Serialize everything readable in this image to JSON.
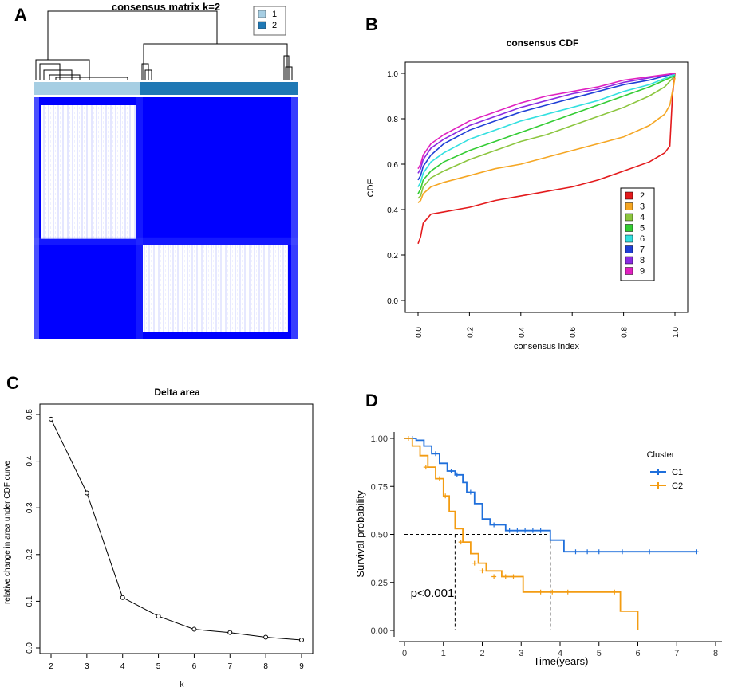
{
  "panel_letters": {
    "a": "A",
    "b": "B",
    "c": "C",
    "d": "D"
  },
  "chart_data": [
    {
      "panel": "A",
      "type": "heatmap",
      "title": "consensus matrix k=2",
      "legend": [
        {
          "label": "1",
          "color": "#a6cee3"
        },
        {
          "label": "2",
          "color": "#1f78b4"
        }
      ],
      "clusters": [
        {
          "name": "1",
          "fraction": 0.4,
          "color": "#a6cee3"
        },
        {
          "name": "2",
          "fraction": 0.6,
          "color": "#1f78b4"
        }
      ],
      "matrix_color": "#0000ff"
    },
    {
      "panel": "B",
      "type": "line",
      "title": "consensus CDF",
      "xlabel": "consensus index",
      "ylabel": "CDF",
      "xlim": [
        0,
        1
      ],
      "ylim": [
        0,
        1
      ],
      "xticks": [
        0.0,
        0.2,
        0.4,
        0.6,
        0.8,
        1.0
      ],
      "yticks": [
        0.0,
        0.2,
        0.4,
        0.6,
        0.8,
        1.0
      ],
      "xtick_labels": [
        "0.0",
        "0.2",
        "0.4",
        "0.6",
        "0.8",
        "1.0"
      ],
      "ytick_labels": [
        "0.0",
        "0.2",
        "0.4",
        "0.6",
        "0.8",
        "1.0"
      ],
      "legend_position": "bottom-right",
      "series": [
        {
          "name": "2",
          "color": "#e31a1c",
          "x": [
            0,
            0.01,
            0.02,
            0.05,
            0.1,
            0.2,
            0.3,
            0.4,
            0.5,
            0.6,
            0.7,
            0.8,
            0.9,
            0.96,
            0.98,
            0.99,
            1.0
          ],
          "y": [
            0.25,
            0.28,
            0.34,
            0.38,
            0.39,
            0.41,
            0.44,
            0.46,
            0.48,
            0.5,
            0.53,
            0.57,
            0.61,
            0.65,
            0.68,
            0.9,
            1.0
          ]
        },
        {
          "name": "3",
          "color": "#f5a623",
          "x": [
            0,
            0.01,
            0.02,
            0.05,
            0.1,
            0.2,
            0.3,
            0.4,
            0.5,
            0.6,
            0.7,
            0.8,
            0.9,
            0.96,
            0.98,
            1.0
          ],
          "y": [
            0.43,
            0.44,
            0.47,
            0.5,
            0.52,
            0.55,
            0.58,
            0.6,
            0.63,
            0.66,
            0.69,
            0.72,
            0.77,
            0.82,
            0.86,
            0.98
          ]
        },
        {
          "name": "4",
          "color": "#8cc63f",
          "x": [
            0,
            0.01,
            0.02,
            0.05,
            0.1,
            0.2,
            0.3,
            0.4,
            0.5,
            0.6,
            0.7,
            0.8,
            0.9,
            0.96,
            1.0
          ],
          "y": [
            0.45,
            0.46,
            0.5,
            0.54,
            0.57,
            0.62,
            0.66,
            0.7,
            0.73,
            0.77,
            0.81,
            0.85,
            0.9,
            0.94,
            0.99
          ]
        },
        {
          "name": "5",
          "color": "#33cc33",
          "x": [
            0,
            0.01,
            0.02,
            0.05,
            0.1,
            0.2,
            0.3,
            0.4,
            0.5,
            0.6,
            0.7,
            0.8,
            0.9,
            1.0
          ],
          "y": [
            0.47,
            0.49,
            0.53,
            0.57,
            0.61,
            0.66,
            0.7,
            0.74,
            0.78,
            0.82,
            0.86,
            0.9,
            0.94,
            0.99
          ]
        },
        {
          "name": "6",
          "color": "#33e0e0",
          "x": [
            0,
            0.01,
            0.02,
            0.05,
            0.1,
            0.2,
            0.3,
            0.4,
            0.5,
            0.6,
            0.7,
            0.8,
            0.9,
            1.0
          ],
          "y": [
            0.5,
            0.52,
            0.56,
            0.61,
            0.65,
            0.71,
            0.75,
            0.79,
            0.82,
            0.85,
            0.88,
            0.92,
            0.95,
            0.995
          ]
        },
        {
          "name": "7",
          "color": "#1f3fd6",
          "x": [
            0,
            0.01,
            0.02,
            0.05,
            0.1,
            0.2,
            0.3,
            0.4,
            0.5,
            0.6,
            0.7,
            0.8,
            0.9,
            1.0
          ],
          "y": [
            0.53,
            0.55,
            0.59,
            0.64,
            0.69,
            0.75,
            0.79,
            0.83,
            0.86,
            0.89,
            0.92,
            0.95,
            0.97,
            1.0
          ]
        },
        {
          "name": "8",
          "color": "#8a2be2",
          "x": [
            0,
            0.01,
            0.02,
            0.05,
            0.1,
            0.2,
            0.3,
            0.4,
            0.5,
            0.6,
            0.7,
            0.8,
            0.9,
            1.0
          ],
          "y": [
            0.56,
            0.58,
            0.62,
            0.67,
            0.71,
            0.77,
            0.81,
            0.85,
            0.88,
            0.91,
            0.93,
            0.96,
            0.98,
            1.0
          ]
        },
        {
          "name": "9",
          "color": "#e020c0",
          "x": [
            0,
            0.01,
            0.02,
            0.05,
            0.1,
            0.2,
            0.3,
            0.4,
            0.5,
            0.6,
            0.7,
            0.8,
            0.9,
            1.0
          ],
          "y": [
            0.58,
            0.6,
            0.64,
            0.69,
            0.73,
            0.79,
            0.83,
            0.87,
            0.9,
            0.92,
            0.94,
            0.97,
            0.985,
            1.0
          ]
        }
      ]
    },
    {
      "panel": "C",
      "type": "line",
      "title": "Delta area",
      "xlabel": "k",
      "ylabel": "relative change in area under CDF curve",
      "xlim": [
        2,
        9
      ],
      "ylim": [
        0,
        0.5
      ],
      "xticks": [
        2,
        3,
        4,
        5,
        6,
        7,
        8,
        9
      ],
      "yticks": [
        0.0,
        0.1,
        0.2,
        0.3,
        0.4,
        0.5
      ],
      "xtick_labels": [
        "2",
        "3",
        "4",
        "5",
        "6",
        "7",
        "8",
        "9"
      ],
      "ytick_labels": [
        "0.0",
        "0.1",
        "0.2",
        "0.3",
        "0.4",
        "0.5"
      ],
      "x": [
        2,
        3,
        4,
        5,
        6,
        7,
        8,
        9
      ],
      "y": [
        0.49,
        0.332,
        0.108,
        0.068,
        0.04,
        0.033,
        0.023,
        0.017
      ]
    },
    {
      "panel": "D",
      "type": "line",
      "subtype": "survival",
      "xlabel": "Time(years)",
      "ylabel": "Survival probability",
      "xlim": [
        0,
        8
      ],
      "ylim": [
        0,
        1
      ],
      "xticks": [
        0,
        1,
        2,
        3,
        4,
        5,
        6,
        7,
        8
      ],
      "yticks": [
        0.0,
        0.25,
        0.5,
        0.75,
        1.0
      ],
      "xtick_labels": [
        "0",
        "1",
        "2",
        "3",
        "4",
        "5",
        "6",
        "7",
        "8"
      ],
      "ytick_labels": [
        "0.00",
        "0.25",
        "0.50",
        "0.75",
        "1.00"
      ],
      "legend_title": "Cluster",
      "legend_position": "top-right",
      "annotation": "p<0.001",
      "median_line_y": 0.5,
      "series": [
        {
          "name": "C1",
          "color": "#1f6fdb",
          "x": [
            0,
            0.3,
            0.5,
            0.7,
            0.9,
            1.1,
            1.3,
            1.5,
            1.6,
            1.8,
            2.0,
            2.2,
            2.6,
            3.6,
            3.75,
            4.1,
            7.5
          ],
          "y": [
            1.0,
            0.99,
            0.96,
            0.92,
            0.87,
            0.83,
            0.81,
            0.77,
            0.72,
            0.66,
            0.58,
            0.55,
            0.52,
            0.52,
            0.47,
            0.41,
            0.41
          ],
          "censor_x": [
            0.2,
            0.8,
            1.2,
            1.35,
            1.7,
            2.3,
            2.7,
            2.9,
            3.1,
            3.3,
            3.5,
            4.4,
            4.7,
            5.0,
            5.6,
            6.3,
            7.5
          ],
          "censor_y": [
            1.0,
            0.92,
            0.83,
            0.81,
            0.72,
            0.55,
            0.52,
            0.52,
            0.52,
            0.52,
            0.52,
            0.41,
            0.41,
            0.41,
            0.41,
            0.41,
            0.41
          ]
        },
        {
          "name": "C2",
          "color": "#f39c12",
          "x": [
            0,
            0.2,
            0.4,
            0.6,
            0.8,
            1.0,
            1.15,
            1.3,
            1.5,
            1.7,
            1.9,
            2.1,
            2.5,
            2.9,
            3.05,
            4.0,
            5.55,
            5.95,
            6.0
          ],
          "y": [
            1.0,
            0.96,
            0.91,
            0.85,
            0.79,
            0.7,
            0.62,
            0.53,
            0.46,
            0.4,
            0.35,
            0.31,
            0.28,
            0.28,
            0.2,
            0.2,
            0.1,
            0.1,
            0.0
          ],
          "censor_x": [
            0.1,
            0.55,
            0.9,
            1.05,
            1.45,
            1.8,
            2.0,
            2.3,
            2.6,
            2.8,
            3.5,
            3.8,
            4.2,
            5.4
          ],
          "censor_y": [
            1.0,
            0.85,
            0.79,
            0.7,
            0.46,
            0.35,
            0.31,
            0.28,
            0.28,
            0.28,
            0.2,
            0.2,
            0.2,
            0.2
          ]
        }
      ]
    }
  ]
}
